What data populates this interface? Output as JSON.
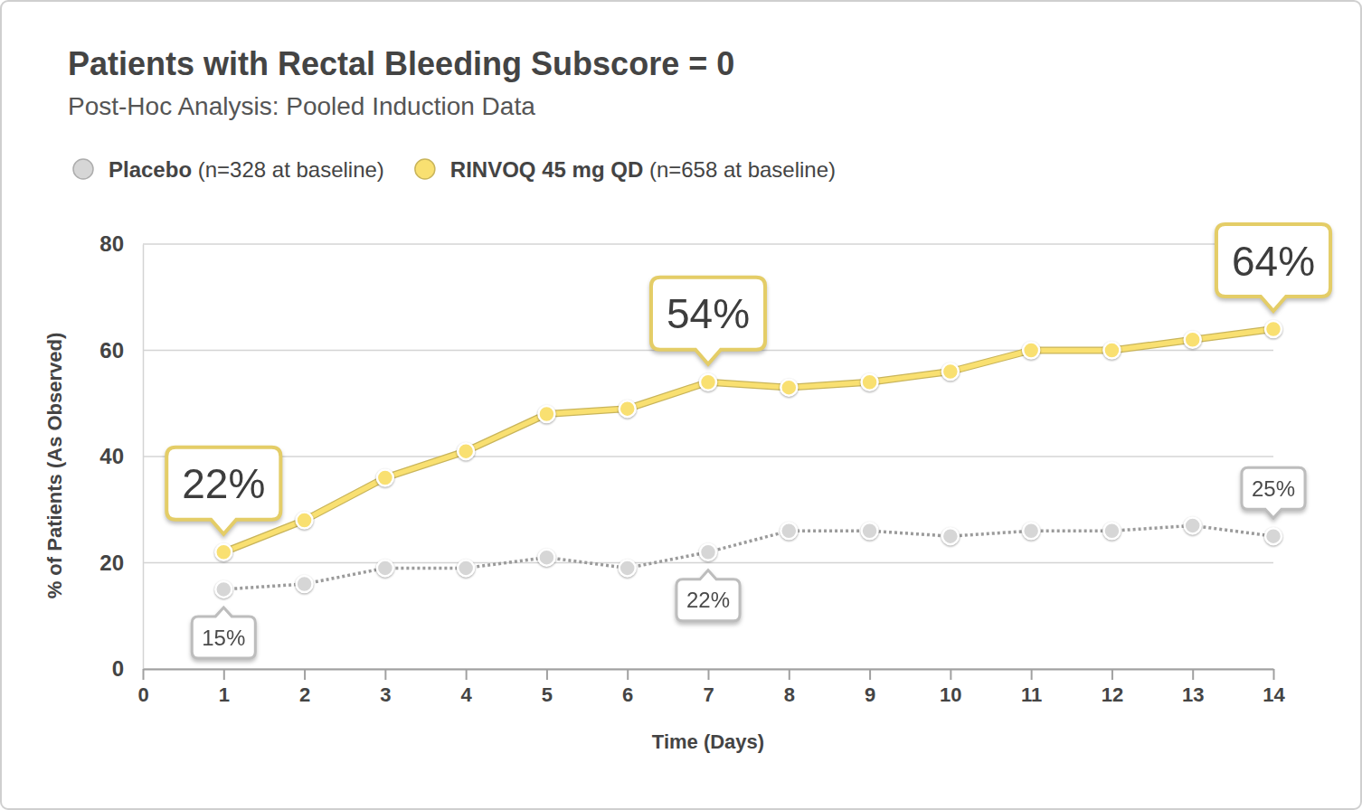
{
  "chart_data": {
    "type": "line",
    "title": "Patients with Rectal Bleeding Subscore = 0",
    "subtitle": "Post-Hoc Analysis: Pooled Induction Data",
    "x_label": "Time (Days)",
    "y_label": "% of Patients (As Observed)",
    "x": [
      1,
      2,
      3,
      4,
      5,
      6,
      7,
      8,
      9,
      10,
      11,
      12,
      13,
      14
    ],
    "xlim": [
      0,
      14
    ],
    "xticks": [
      0,
      1,
      2,
      3,
      4,
      5,
      6,
      7,
      8,
      9,
      10,
      11,
      12,
      13,
      14
    ],
    "ylim": [
      0,
      80
    ],
    "yticks": [
      0,
      20,
      40,
      60,
      80
    ],
    "grid": true,
    "legend": "top",
    "data_labels": true,
    "series": [
      {
        "name": "Placebo (n=328 at baseline)",
        "color": "#d6d6d6",
        "marker": "circle",
        "line_style": "dotted",
        "values": [
          15,
          16,
          19,
          19,
          21,
          19,
          22,
          26,
          26,
          25,
          26,
          26,
          27,
          25
        ],
        "value_labels": [
          "15%",
          null,
          null,
          null,
          null,
          null,
          "22%",
          null,
          null,
          null,
          null,
          null,
          null,
          "25%"
        ]
      },
      {
        "name": "RINVOQ 45 mg QD (n=658 at baseline)",
        "color": "#f9e071",
        "marker": "circle",
        "line_style": "solid",
        "values": [
          22,
          28,
          36,
          41,
          48,
          49,
          54,
          53,
          54,
          56,
          60,
          60,
          62,
          64
        ],
        "value_labels": [
          "22%",
          null,
          null,
          null,
          null,
          null,
          "54%",
          null,
          null,
          null,
          null,
          null,
          null,
          "64%"
        ]
      }
    ]
  }
}
